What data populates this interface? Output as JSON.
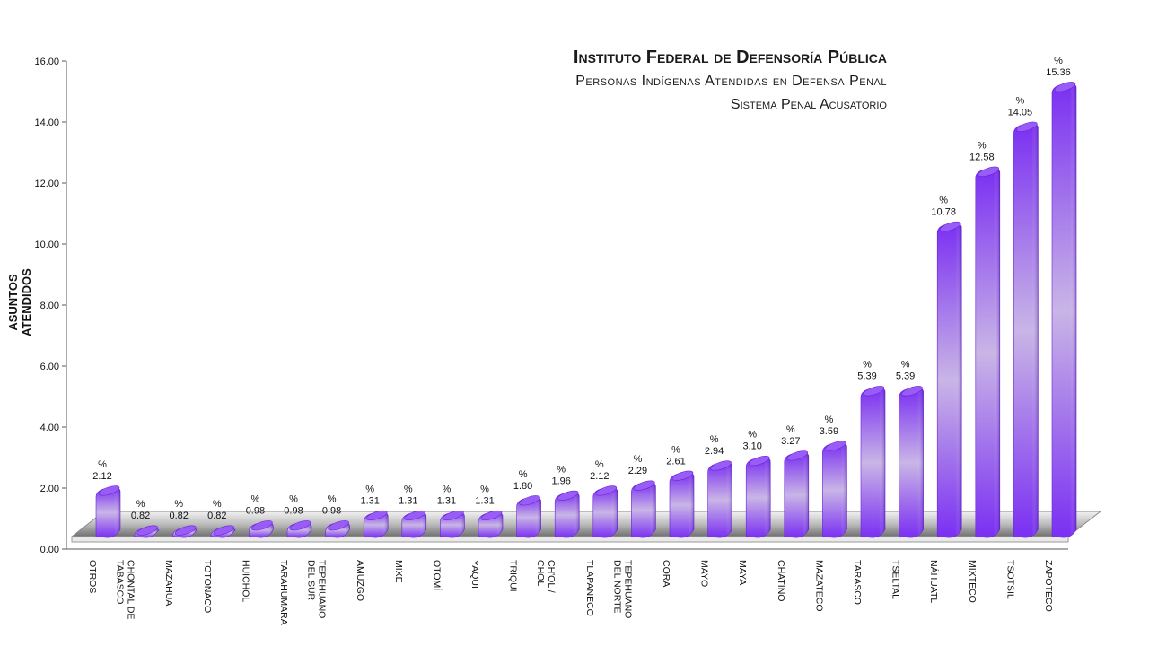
{
  "header": {
    "title": "Instituto Federal de Defensoría Pública",
    "subtitle": "Personas Indígenas  Atendidas en Defensa Penal",
    "subtitle2": "Sistema Penal Acusatorio"
  },
  "chart_data": {
    "type": "bar",
    "title": "Instituto Federal de Defensoría Pública",
    "subtitle": "Personas Indígenas  Atendidas en Defensa Penal",
    "ylabel": "ASUNTOS ATENDIDOS",
    "xlabel": "",
    "ylim": [
      0,
      16
    ],
    "yticks": [
      "0.00",
      "2.00",
      "4.00",
      "6.00",
      "8.00",
      "10.00",
      "12.00",
      "14.00",
      "16.00"
    ],
    "percent_symbol": "%",
    "bar_color": "#8a3ff5",
    "categories": [
      "OTROS",
      "CHONTAL DE TABASCO",
      "MAZAHUA",
      "TOTONACO",
      "HUICHOL",
      "TARAHUMARA",
      "TEPEHUANO DEL SUR",
      "AMUZGO",
      "MIXE",
      "OTOMÍ",
      "YAQUI",
      "TRIQUI",
      "CH'OL / CHOL",
      "TLAPANECO",
      "TEPEHUANO DEL NORTE",
      "CORA",
      "MAYO",
      "MAYA",
      "CHATINO",
      "MAZATECO",
      "TARASCO",
      "TSELTAL",
      "NÁHUATL",
      "MIXTECO",
      "TSOTSIL",
      "ZAPOTECO"
    ],
    "values": [
      2.12,
      0.82,
      0.82,
      0.82,
      0.98,
      0.98,
      0.98,
      1.31,
      1.31,
      1.31,
      1.31,
      1.8,
      1.96,
      2.12,
      2.29,
      2.61,
      2.94,
      3.1,
      3.27,
      3.59,
      5.39,
      5.39,
      10.78,
      12.58,
      14.05,
      15.36
    ],
    "data_labels": [
      "2.12",
      "0.82",
      "0.82",
      "0.82",
      "0.98",
      "0.98",
      "0.98",
      "1.31",
      "1.31",
      "1.31",
      "1.31",
      "1.80",
      "1.96",
      "2.12",
      "2.29",
      "2.61",
      "2.94",
      "3.10",
      "3.27",
      "3.59",
      "5.39",
      "5.39",
      "10.78",
      "12.58",
      "14.05",
      "15.36"
    ]
  }
}
